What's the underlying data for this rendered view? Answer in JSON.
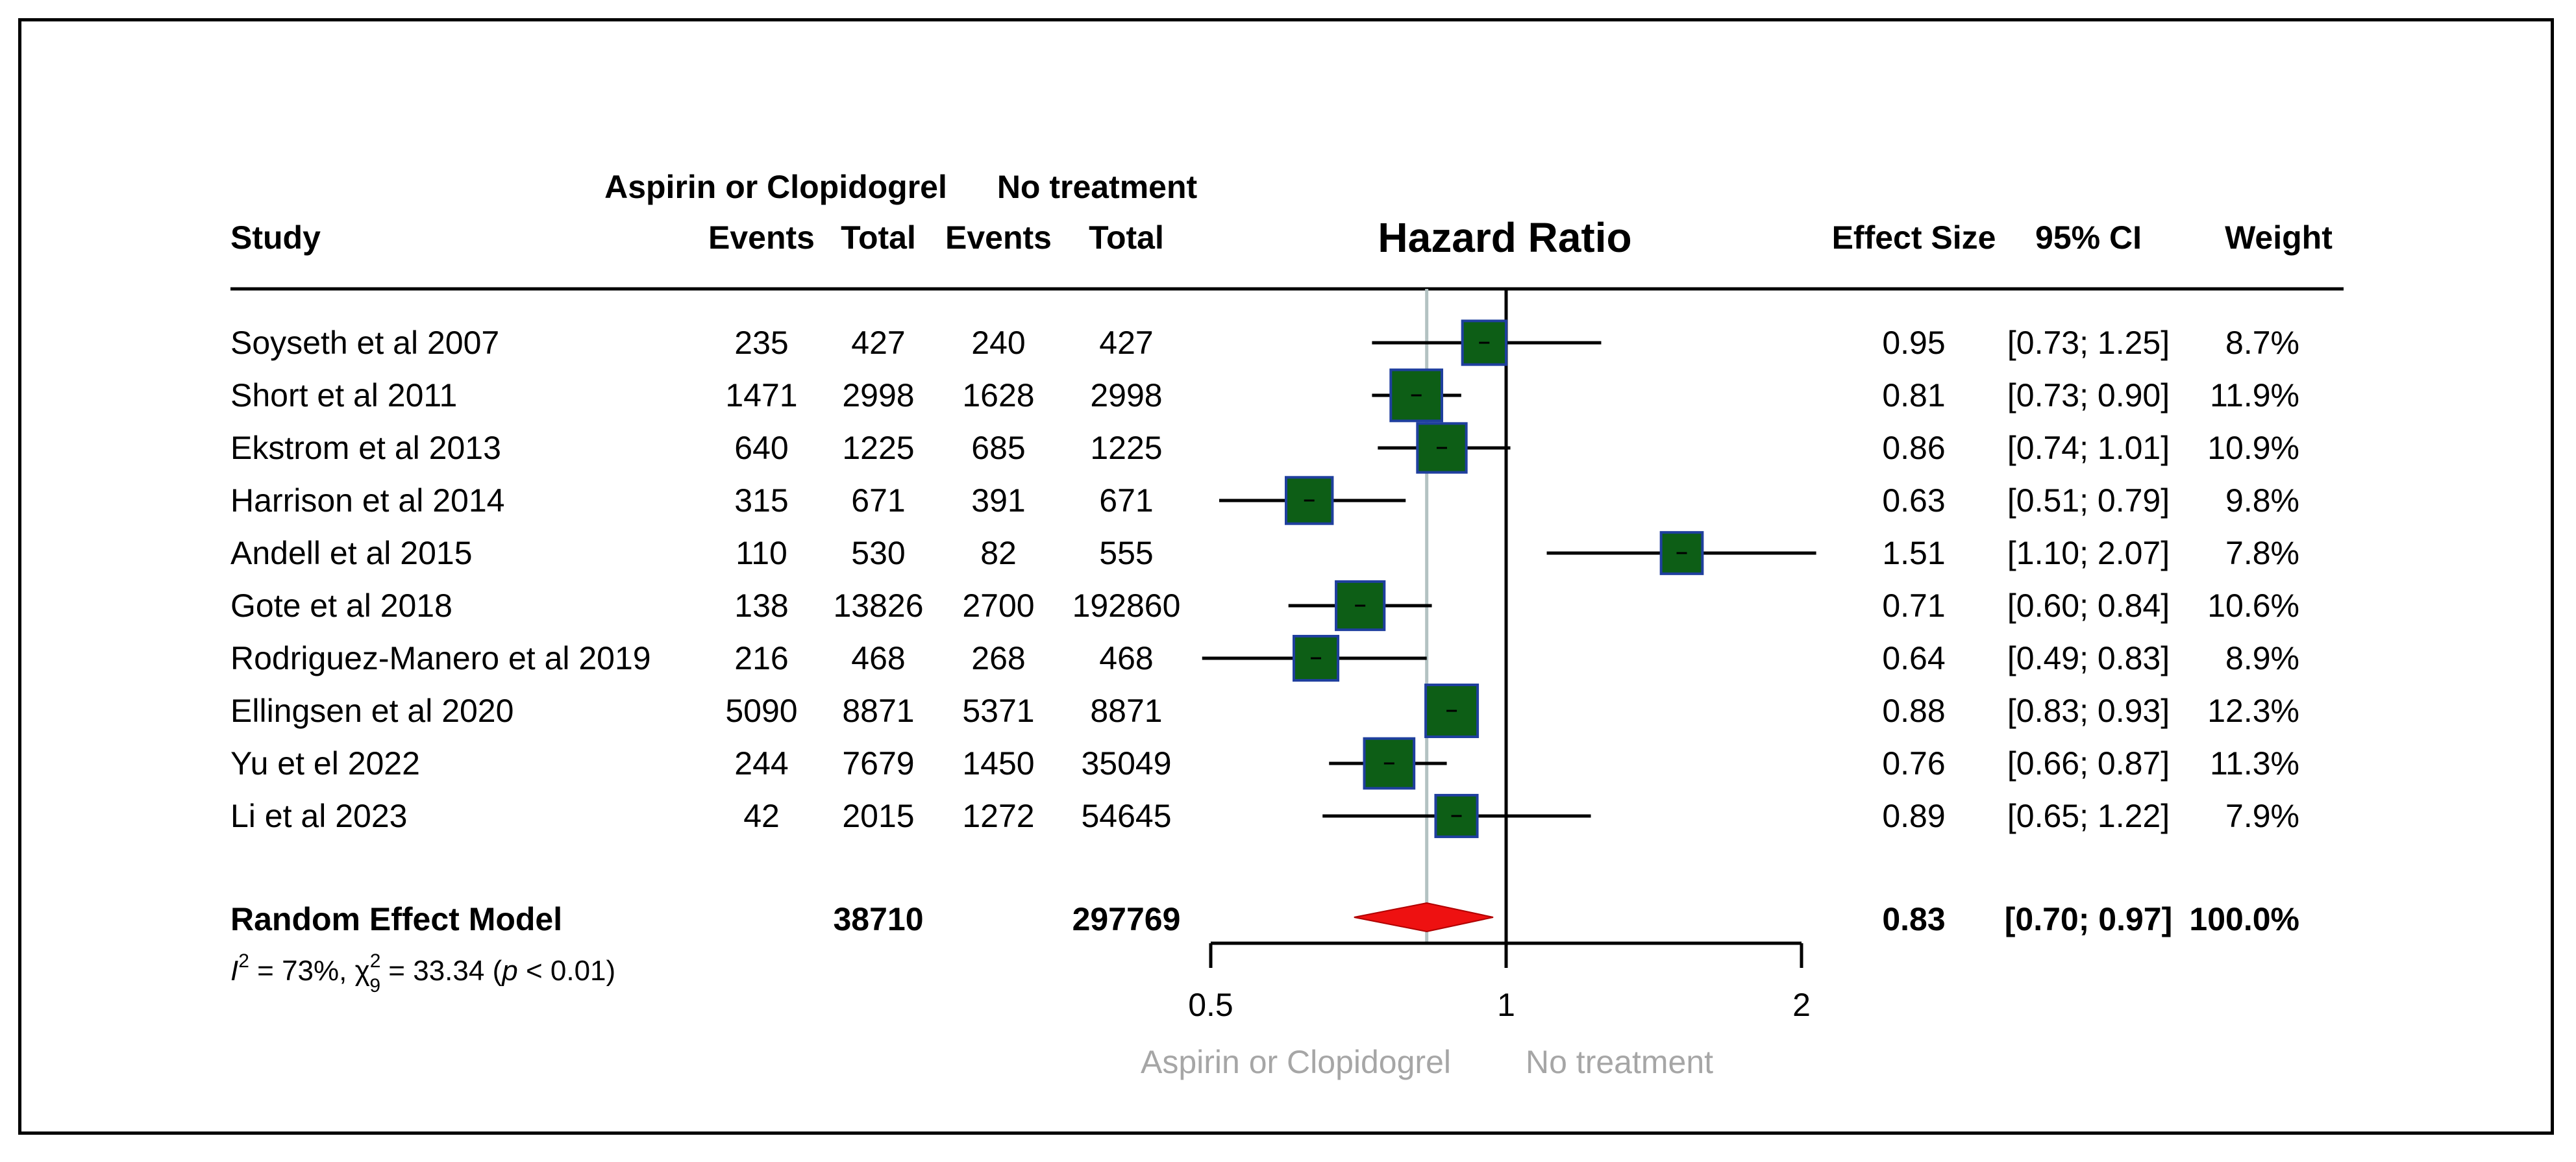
{
  "chart_data": {
    "type": "forest",
    "title": "Hazard Ratio",
    "group_headers": {
      "treatment": "Aspirin or Clopidogrel",
      "control": "No treatment"
    },
    "column_headers": {
      "study": "Study",
      "events_t": "Events",
      "total_t": "Total",
      "events_c": "Events",
      "total_c": "Total",
      "effect": "Effect Size",
      "ci": "95% CI",
      "weight": "Weight"
    },
    "studies": [
      {
        "name": "Soyseth et al 2007",
        "events_t": "235",
        "total_t": "427",
        "events_c": "240",
        "total_c": "427",
        "hr": 0.95,
        "lo": 0.73,
        "hi": 1.25,
        "hr_label": "0.95",
        "ci_label": "[0.73; 1.25]",
        "weight": 8.7,
        "weight_label": "8.7%"
      },
      {
        "name": "Short et al 2011",
        "events_t": "1471",
        "total_t": "2998",
        "events_c": "1628",
        "total_c": "2998",
        "hr": 0.81,
        "lo": 0.73,
        "hi": 0.9,
        "hr_label": "0.81",
        "ci_label": "[0.73; 0.90]",
        "weight": 11.9,
        "weight_label": "11.9%"
      },
      {
        "name": "Ekstrom et al 2013",
        "events_t": "640",
        "total_t": "1225",
        "events_c": "685",
        "total_c": "1225",
        "hr": 0.86,
        "lo": 0.74,
        "hi": 1.01,
        "hr_label": "0.86",
        "ci_label": "[0.74; 1.01]",
        "weight": 10.9,
        "weight_label": "10.9%"
      },
      {
        "name": "Harrison et al 2014",
        "events_t": "315",
        "total_t": "671",
        "events_c": "391",
        "total_c": "671",
        "hr": 0.63,
        "lo": 0.51,
        "hi": 0.79,
        "hr_label": "0.63",
        "ci_label": "[0.51; 0.79]",
        "weight": 9.8,
        "weight_label": "9.8%"
      },
      {
        "name": "Andell et al 2015",
        "events_t": "110",
        "total_t": "530",
        "events_c": "82",
        "total_c": "555",
        "hr": 1.51,
        "lo": 1.1,
        "hi": 2.07,
        "hr_label": "1.51",
        "ci_label": "[1.10; 2.07]",
        "weight": 7.8,
        "weight_label": "7.8%"
      },
      {
        "name": "Gote et al 2018",
        "events_t": "138",
        "total_t": "13826",
        "events_c": "2700",
        "total_c": "192860",
        "hr": 0.71,
        "lo": 0.6,
        "hi": 0.84,
        "hr_label": "0.71",
        "ci_label": "[0.60; 0.84]",
        "weight": 10.6,
        "weight_label": "10.6%"
      },
      {
        "name": "Rodriguez-Manero et al 2019",
        "events_t": "216",
        "total_t": "468",
        "events_c": "268",
        "total_c": "468",
        "hr": 0.64,
        "lo": 0.49,
        "hi": 0.83,
        "hr_label": "0.64",
        "ci_label": "[0.49; 0.83]",
        "weight": 8.9,
        "weight_label": "8.9%"
      },
      {
        "name": "Ellingsen et al 2020",
        "events_t": "5090",
        "total_t": "8871",
        "events_c": "5371",
        "total_c": "8871",
        "hr": 0.88,
        "lo": 0.83,
        "hi": 0.93,
        "hr_label": "0.88",
        "ci_label": "[0.83; 0.93]",
        "weight": 12.3,
        "weight_label": "12.3%"
      },
      {
        "name": "Yu et el 2022",
        "events_t": "244",
        "total_t": "7679",
        "events_c": "1450",
        "total_c": "35049",
        "hr": 0.76,
        "lo": 0.66,
        "hi": 0.87,
        "hr_label": "0.76",
        "ci_label": "[0.66; 0.87]",
        "weight": 11.3,
        "weight_label": "11.3%"
      },
      {
        "name": "Li et al 2023",
        "events_t": "42",
        "total_t": "2015",
        "events_c": "1272",
        "total_c": "54645",
        "hr": 0.89,
        "lo": 0.65,
        "hi": 1.22,
        "hr_label": "0.89",
        "ci_label": "[0.65; 1.22]",
        "weight": 7.9,
        "weight_label": "7.9%"
      }
    ],
    "pooled": {
      "name": "Random Effect Model",
      "total_t": "38710",
      "total_c": "297769",
      "hr": 0.83,
      "lo": 0.7,
      "hi": 0.97,
      "hr_label": "0.83",
      "ci_label": "[0.70; 0.97]",
      "weight_label": "100.0%"
    },
    "heterogeneity": {
      "i2": "73%",
      "df": "9",
      "chi2": "33.34",
      "p": "< 0.01"
    },
    "x_axis": {
      "scale": "log",
      "range": [
        0.5,
        2
      ],
      "ticks": [
        0.5,
        1,
        2
      ],
      "tick_labels": [
        "0.5",
        "1",
        "2"
      ],
      "reference": 1
    },
    "direction_labels": {
      "left": "Aspirin or Clopidogrel",
      "right": "No treatment"
    },
    "colors": {
      "box": "#0d5e16",
      "box_border": "#1f3f9e",
      "diamond": "#ee1111",
      "pooled_line": "#b3c2c2",
      "direction_text": "#a6a6a6"
    }
  }
}
